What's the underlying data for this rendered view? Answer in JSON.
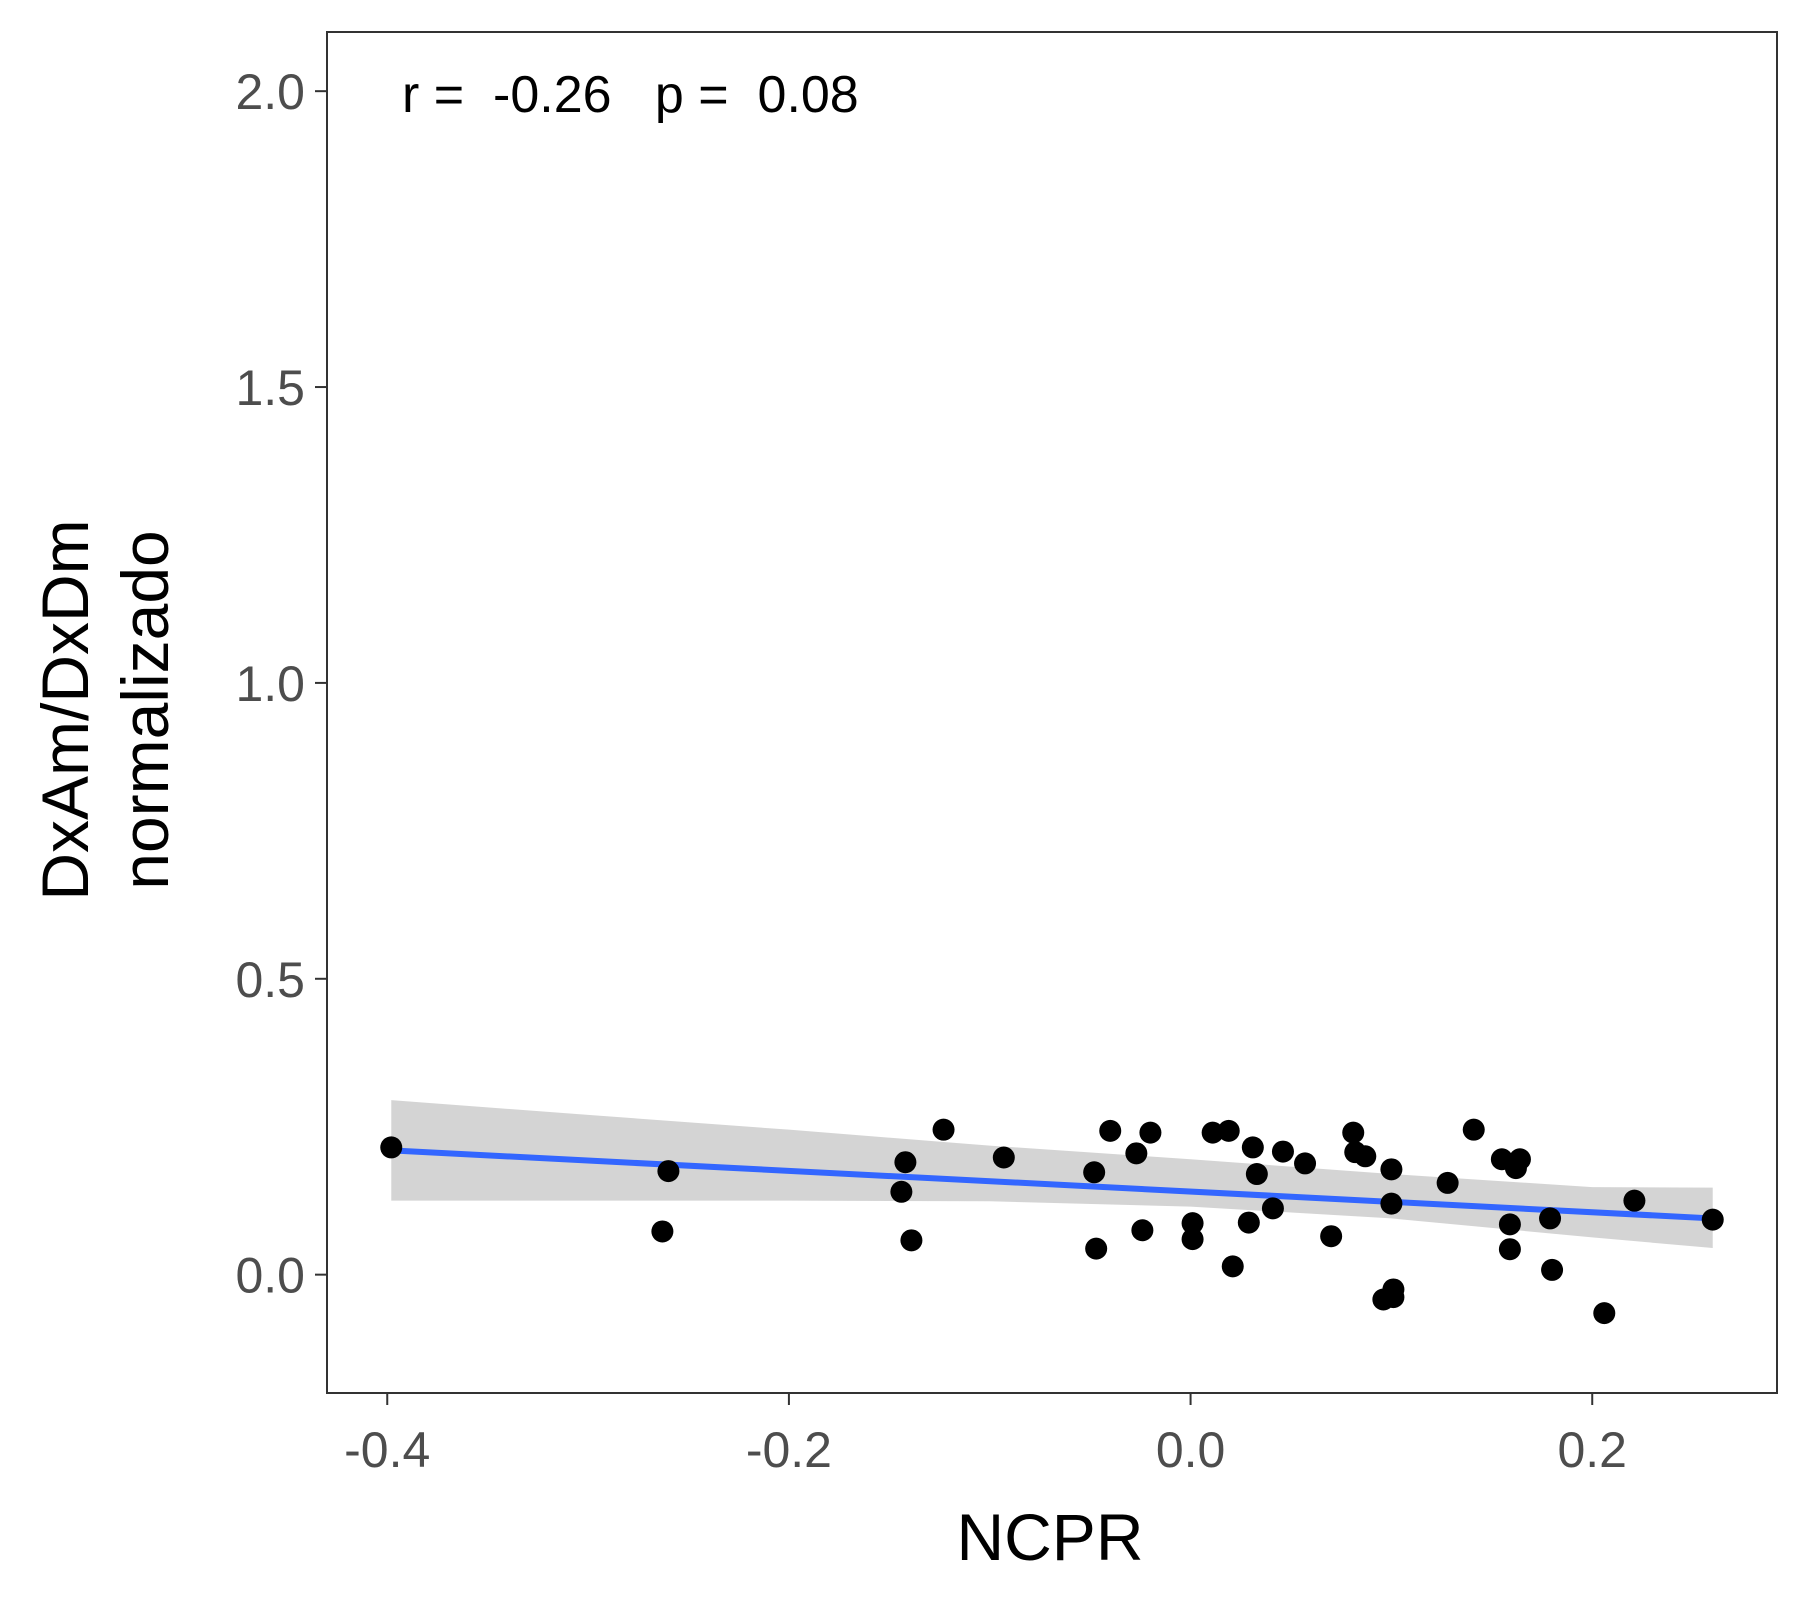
{
  "chart_data": {
    "type": "scatter",
    "title": "",
    "xlabel": "NCPR",
    "ylabel_lines": [
      "DxAm/DxDm",
      "normalizado"
    ],
    "annotation": "r =  -0.26   p =  0.08",
    "xlim": [
      -0.43,
      0.292
    ],
    "ylim": [
      -0.2,
      2.1
    ],
    "x_ticks": [
      -0.4,
      -0.2,
      0.0,
      0.2
    ],
    "x_tick_labels": [
      "-0.4",
      "-0.2",
      "0.0",
      "0.2"
    ],
    "y_ticks": [
      0.0,
      0.5,
      1.0,
      1.5,
      2.0
    ],
    "y_tick_labels": [
      "0.0",
      "0.5",
      "1.0",
      "1.5",
      "2.0"
    ],
    "grid": false,
    "colors": {
      "points": "#000000",
      "fit_line": "#3366ff",
      "confidence_band": "#cccccc",
      "panel_border": "#333333"
    },
    "points": [
      {
        "x": -0.398,
        "y": 0.215
      },
      {
        "x": -0.26,
        "y": 0.175
      },
      {
        "x": -0.263,
        "y": 0.073
      },
      {
        "x": -0.142,
        "y": 0.19
      },
      {
        "x": -0.144,
        "y": 0.14
      },
      {
        "x": -0.139,
        "y": 0.058
      },
      {
        "x": -0.123,
        "y": 0.245
      },
      {
        "x": -0.093,
        "y": 0.198
      },
      {
        "x": -0.048,
        "y": 0.173
      },
      {
        "x": -0.047,
        "y": 0.044
      },
      {
        "x": -0.04,
        "y": 0.243
      },
      {
        "x": -0.027,
        "y": 0.205
      },
      {
        "x": -0.024,
        "y": 0.075
      },
      {
        "x": -0.02,
        "y": 0.24
      },
      {
        "x": 0.001,
        "y": 0.087
      },
      {
        "x": 0.001,
        "y": 0.06
      },
      {
        "x": 0.011,
        "y": 0.24
      },
      {
        "x": 0.019,
        "y": 0.243
      },
      {
        "x": 0.021,
        "y": 0.014
      },
      {
        "x": 0.029,
        "y": 0.088
      },
      {
        "x": 0.031,
        "y": 0.215
      },
      {
        "x": 0.033,
        "y": 0.17
      },
      {
        "x": 0.041,
        "y": 0.112
      },
      {
        "x": 0.046,
        "y": 0.208
      },
      {
        "x": 0.057,
        "y": 0.188
      },
      {
        "x": 0.07,
        "y": 0.065
      },
      {
        "x": 0.081,
        "y": 0.24
      },
      {
        "x": 0.082,
        "y": 0.207
      },
      {
        "x": 0.087,
        "y": 0.2
      },
      {
        "x": 0.096,
        "y": -0.042
      },
      {
        "x": 0.1,
        "y": 0.178
      },
      {
        "x": 0.1,
        "y": 0.12
      },
      {
        "x": 0.101,
        "y": -0.025
      },
      {
        "x": 0.101,
        "y": -0.038
      },
      {
        "x": 0.128,
        "y": 0.155
      },
      {
        "x": 0.141,
        "y": 0.245
      },
      {
        "x": 0.155,
        "y": 0.195
      },
      {
        "x": 0.159,
        "y": 0.085
      },
      {
        "x": 0.159,
        "y": 0.043
      },
      {
        "x": 0.162,
        "y": 0.18
      },
      {
        "x": 0.164,
        "y": 0.195
      },
      {
        "x": 0.179,
        "y": 0.095
      },
      {
        "x": 0.18,
        "y": 0.008
      },
      {
        "x": 0.206,
        "y": -0.065
      },
      {
        "x": 0.221,
        "y": 0.125
      },
      {
        "x": 0.26,
        "y": 0.093
      }
    ],
    "fit_line": {
      "x": [
        -0.398,
        0.26
      ],
      "y": [
        0.21,
        0.095
      ]
    },
    "confidence_band": {
      "x": [
        -0.398,
        -0.3,
        -0.2,
        -0.1,
        0.0,
        0.1,
        0.2,
        0.26
      ],
      "upper": [
        0.295,
        0.27,
        0.245,
        0.218,
        0.195,
        0.17,
        0.148,
        0.147
      ],
      "lower": [
        0.125,
        0.125,
        0.125,
        0.124,
        0.115,
        0.095,
        0.063,
        0.045
      ]
    }
  }
}
